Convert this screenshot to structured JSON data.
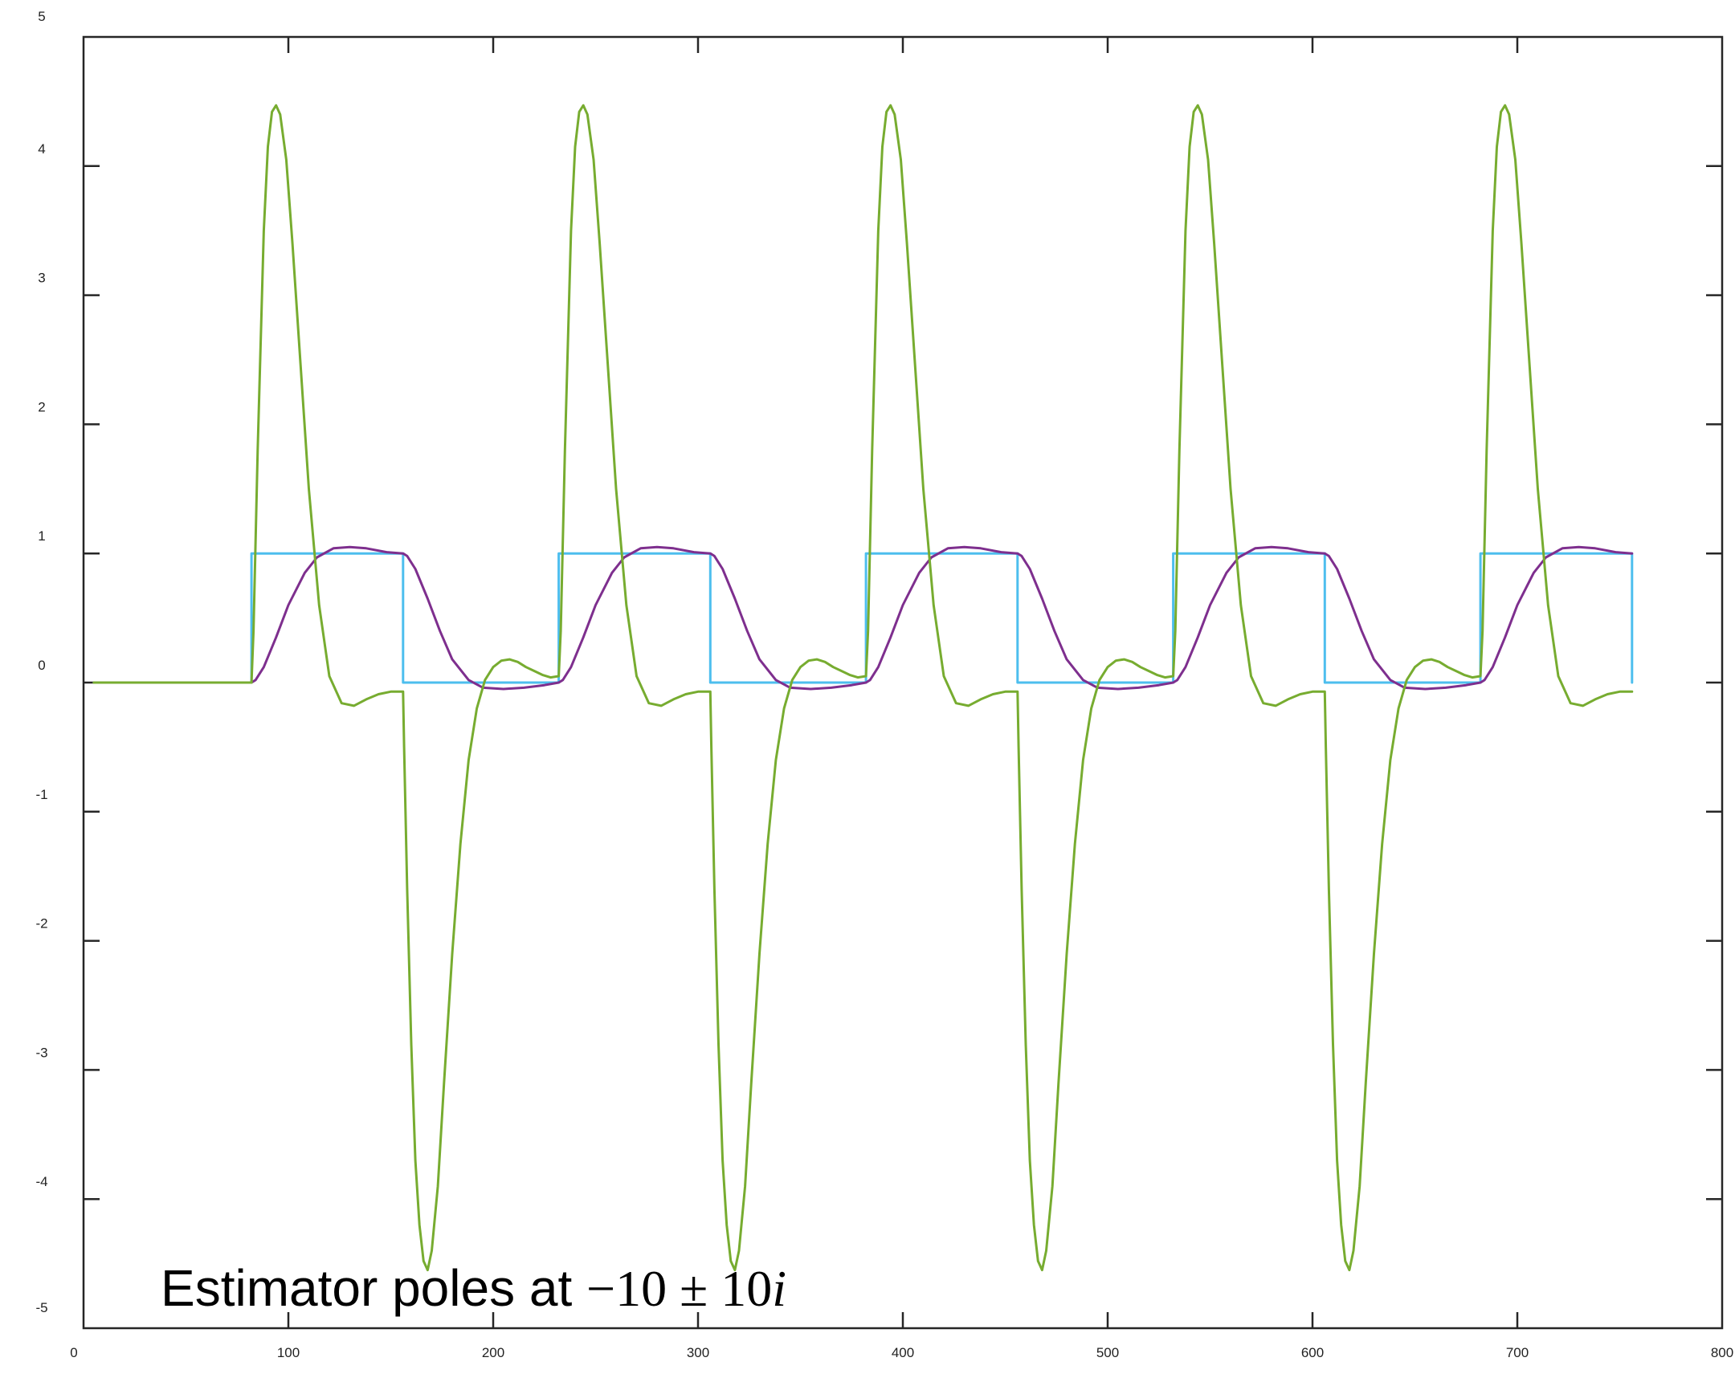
{
  "chart_data": {
    "type": "line",
    "title": "",
    "xlabel": "",
    "ylabel": "",
    "xlim": [
      0,
      800
    ],
    "ylim": [
      -5,
      5
    ],
    "xticks": [
      "0",
      "100",
      "200",
      "300",
      "400",
      "500",
      "600",
      "700",
      "800"
    ],
    "yticks": [
      "5",
      "4",
      "3",
      "2",
      "1",
      "0",
      "-1",
      "-2",
      "-3",
      "-4",
      "-5"
    ],
    "grid": false,
    "annotation": {
      "text": "Estimator poles at ",
      "math_part1": "−10 ± 10",
      "math_italic": "i"
    },
    "series": [
      {
        "color": "#4dbeee",
        "x": [
          5,
          82,
          82,
          156,
          156,
          232,
          232,
          306,
          306,
          382,
          382,
          456,
          456,
          532,
          532,
          606,
          606,
          682,
          682,
          756,
          756
        ],
        "y": [
          0,
          0,
          1,
          1,
          0,
          0,
          1,
          1,
          0,
          0,
          1,
          1,
          0,
          0,
          1,
          1,
          0,
          0,
          1,
          1,
          0
        ]
      },
      {
        "color": "#7e2f8e",
        "x": [
          5,
          82,
          84,
          88,
          94,
          100,
          108,
          114,
          122,
          130,
          138,
          148,
          156,
          158,
          162,
          168,
          174,
          180,
          188,
          195,
          205,
          215,
          225,
          232,
          234,
          238,
          244,
          250,
          258,
          264,
          272,
          280,
          288,
          298,
          306,
          308,
          312,
          318,
          324,
          330,
          338,
          345,
          355,
          365,
          375,
          382,
          384,
          388,
          394,
          400,
          408,
          414,
          422,
          430,
          438,
          448,
          456,
          458,
          462,
          468,
          474,
          480,
          488,
          495,
          505,
          515,
          525,
          532,
          534,
          538,
          544,
          550,
          558,
          564,
          572,
          580,
          588,
          598,
          606,
          608,
          612,
          618,
          624,
          630,
          638,
          645,
          655,
          665,
          675,
          682,
          684,
          688,
          694,
          700,
          708,
          714,
          722,
          730,
          738,
          748,
          756
        ],
        "y": [
          0,
          0,
          0.02,
          0.12,
          0.35,
          0.6,
          0.85,
          0.97,
          1.04,
          1.05,
          1.04,
          1.01,
          1.0,
          0.98,
          0.88,
          0.65,
          0.4,
          0.18,
          0.02,
          -0.04,
          -0.05,
          -0.04,
          -0.02,
          0,
          0.02,
          0.12,
          0.35,
          0.6,
          0.85,
          0.97,
          1.04,
          1.05,
          1.04,
          1.01,
          1.0,
          0.98,
          0.88,
          0.65,
          0.4,
          0.18,
          0.02,
          -0.04,
          -0.05,
          -0.04,
          -0.02,
          0,
          0.02,
          0.12,
          0.35,
          0.6,
          0.85,
          0.97,
          1.04,
          1.05,
          1.04,
          1.01,
          1.0,
          0.98,
          0.88,
          0.65,
          0.4,
          0.18,
          0.02,
          -0.04,
          -0.05,
          -0.04,
          -0.02,
          0,
          0.02,
          0.12,
          0.35,
          0.6,
          0.85,
          0.97,
          1.04,
          1.05,
          1.04,
          1.01,
          1.0,
          0.98,
          0.88,
          0.65,
          0.4,
          0.18,
          0.02,
          -0.04,
          -0.05,
          -0.04,
          -0.02,
          0,
          0.02,
          0.12,
          0.35,
          0.6,
          0.85,
          0.97,
          1.04,
          1.05,
          1.04,
          1.01,
          1.0
        ]
      },
      {
        "color": "#77ac30",
        "x": [
          5,
          82,
          83,
          85,
          88,
          90,
          92,
          94,
          96,
          99,
          102,
          106,
          110,
          115,
          120,
          126,
          132,
          138,
          144,
          150,
          156,
          156.5,
          158,
          160,
          162,
          164,
          166,
          168,
          170,
          173,
          176,
          180,
          184,
          188,
          192,
          196,
          200,
          204,
          208,
          212,
          216,
          220,
          224,
          228,
          232,
          233,
          235,
          238,
          240,
          242,
          244,
          246,
          249,
          252,
          256,
          260,
          265,
          270,
          276,
          282,
          288,
          294,
          300,
          306,
          306.5,
          308,
          310,
          312,
          314,
          316,
          318,
          320,
          323,
          326,
          330,
          334,
          338,
          342,
          346,
          350,
          354,
          358,
          362,
          366,
          370,
          374,
          378,
          382,
          383,
          385,
          388,
          390,
          392,
          394,
          396,
          399,
          402,
          406,
          410,
          415,
          420,
          426,
          432,
          438,
          444,
          450,
          456,
          456.5,
          458,
          460,
          462,
          464,
          466,
          468,
          470,
          473,
          476,
          480,
          484,
          488,
          492,
          496,
          500,
          504,
          508,
          512,
          516,
          520,
          524,
          528,
          532,
          533,
          535,
          538,
          540,
          542,
          544,
          546,
          549,
          552,
          556,
          560,
          565,
          570,
          576,
          582,
          588,
          594,
          600,
          606,
          606.5,
          608,
          610,
          612,
          614,
          616,
          618,
          620,
          623,
          626,
          630,
          634,
          638,
          642,
          646,
          650,
          654,
          658,
          662,
          666,
          670,
          674,
          678,
          682,
          683,
          685,
          688,
          690,
          692,
          694,
          696,
          699,
          702,
          706,
          710,
          715,
          720,
          726,
          732,
          738,
          744,
          750,
          756
        ],
        "y": [
          0,
          0,
          0.4,
          1.8,
          3.5,
          4.15,
          4.42,
          4.47,
          4.4,
          4.05,
          3.4,
          2.45,
          1.5,
          0.6,
          0.05,
          -0.16,
          -0.18,
          -0.13,
          -0.09,
          -0.07,
          -0.07,
          -0.5,
          -1.6,
          -2.8,
          -3.7,
          -4.2,
          -4.48,
          -4.55,
          -4.4,
          -3.9,
          -3.1,
          -2.1,
          -1.25,
          -0.6,
          -0.2,
          0.02,
          0.12,
          0.17,
          0.18,
          0.16,
          0.12,
          0.09,
          0.06,
          0.04,
          0.05,
          0.4,
          1.8,
          3.5,
          4.15,
          4.42,
          4.47,
          4.4,
          4.05,
          3.4,
          2.45,
          1.5,
          0.6,
          0.05,
          -0.16,
          -0.18,
          -0.13,
          -0.09,
          -0.07,
          -0.07,
          -0.5,
          -1.6,
          -2.8,
          -3.7,
          -4.2,
          -4.48,
          -4.55,
          -4.4,
          -3.9,
          -3.1,
          -2.1,
          -1.25,
          -0.6,
          -0.2,
          0.02,
          0.12,
          0.17,
          0.18,
          0.16,
          0.12,
          0.09,
          0.06,
          0.04,
          0.05,
          0.4,
          1.8,
          3.5,
          4.15,
          4.42,
          4.47,
          4.4,
          4.05,
          3.4,
          2.45,
          1.5,
          0.6,
          0.05,
          -0.16,
          -0.18,
          -0.13,
          -0.09,
          -0.07,
          -0.07,
          -0.5,
          -1.6,
          -2.8,
          -3.7,
          -4.2,
          -4.48,
          -4.55,
          -4.4,
          -3.9,
          -3.1,
          -2.1,
          -1.25,
          -0.6,
          -0.2,
          0.02,
          0.12,
          0.17,
          0.18,
          0.16,
          0.12,
          0.09,
          0.06,
          0.04,
          0.05,
          0.4,
          1.8,
          3.5,
          4.15,
          4.42,
          4.47,
          4.4,
          4.05,
          3.4,
          2.45,
          1.5,
          0.6,
          0.05,
          -0.16,
          -0.18,
          -0.13,
          -0.09,
          -0.07,
          -0.07,
          -0.5,
          -1.6,
          -2.8,
          -3.7,
          -4.2,
          -4.48,
          -4.55,
          -4.4,
          -3.9,
          -3.1,
          -2.1,
          -1.25,
          -0.6,
          -0.2,
          0.02,
          0.12,
          0.17,
          0.18,
          0.16,
          0.12,
          0.09,
          0.06,
          0.04,
          0.05,
          0.4,
          1.8,
          3.5,
          4.15,
          4.42,
          4.47,
          4.4,
          4.05,
          3.4,
          2.45,
          1.5,
          0.6,
          0.05,
          -0.16,
          -0.18,
          -0.13,
          -0.09,
          -0.07,
          -0.07
        ]
      }
    ]
  }
}
